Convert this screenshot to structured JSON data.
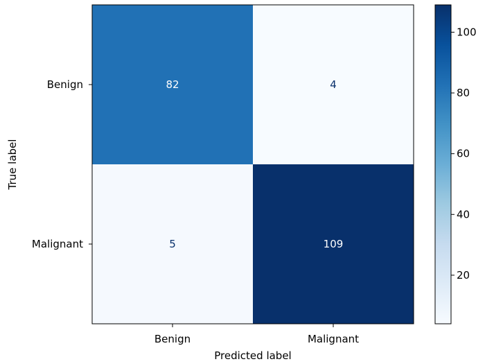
{
  "chart_data": {
    "type": "heatmap",
    "xlabel": "Predicted label",
    "ylabel": "True label",
    "x_categories": [
      "Benign",
      "Malignant"
    ],
    "y_categories": [
      "Benign",
      "Malignant"
    ],
    "values": [
      [
        82,
        4
      ],
      [
        5,
        109
      ]
    ],
    "colormap": "Blues",
    "color_range": [
      4,
      109
    ],
    "colorbar": {
      "ticks": [
        20,
        40,
        60,
        80,
        100
      ],
      "tick_labels": [
        "20",
        "40",
        "60",
        "80",
        "100"
      ]
    },
    "cell_colors": [
      [
        "#2171b5",
        "#f7fbff"
      ],
      [
        "#f5f9fe",
        "#08306b"
      ]
    ],
    "cell_text_colors": [
      [
        "#ffffff",
        "#08306b"
      ],
      [
        "#08306b",
        "#ffffff"
      ]
    ],
    "grid": false
  }
}
